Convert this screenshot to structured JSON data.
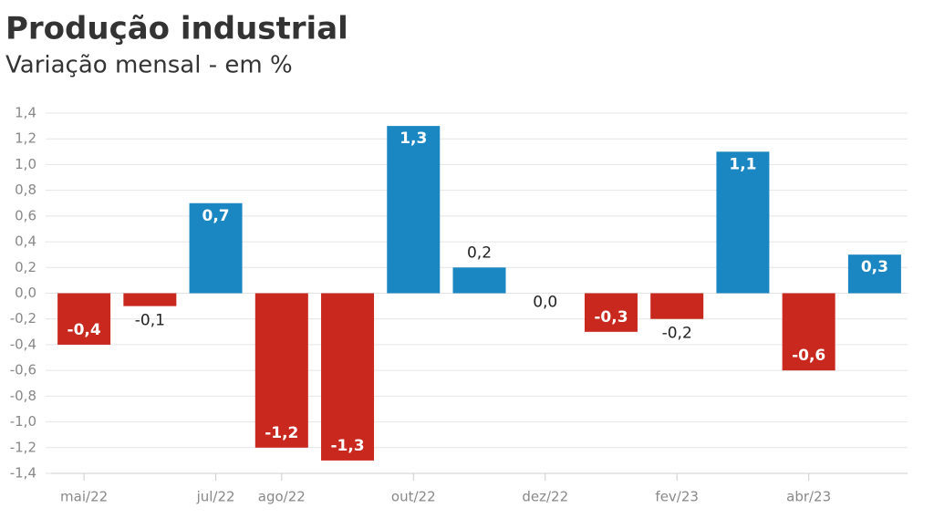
{
  "chart_data": {
    "type": "bar",
    "title": "Produção industrial",
    "subtitle": "Variação mensal - em %",
    "categories": [
      "mai/22",
      null,
      "jul/22",
      "ago/22",
      null,
      "out/22",
      null,
      "dez/22",
      null,
      "fev/23",
      null,
      "abr/23",
      null
    ],
    "values": [
      -0.4,
      -0.1,
      0.7,
      -1.2,
      -1.3,
      1.3,
      0.2,
      0.0,
      -0.3,
      -0.2,
      1.1,
      -0.6,
      0.3
    ],
    "value_labels": [
      "-0,4",
      "-0,1",
      "0,7",
      "-1,2",
      "-1,3",
      "1,3",
      "0,2",
      "0,0",
      "-0,3",
      "-0,2",
      "1,1",
      "-0,6",
      "0,3"
    ],
    "positive_color": "#1b87c2",
    "negative_color": "#c9281f",
    "ylim": [
      -1.4,
      1.4
    ],
    "yticks": [
      {
        "value": -1.4,
        "label": "-1,4"
      },
      {
        "value": -1.2,
        "label": "-1,2"
      },
      {
        "value": -1.0,
        "label": "-1,0"
      },
      {
        "value": -0.8,
        "label": "-0,8"
      },
      {
        "value": -0.6,
        "label": "-0,6"
      },
      {
        "value": -0.4,
        "label": "-0,4"
      },
      {
        "value": -0.2,
        "label": "-0,2"
      },
      {
        "value": 0.0,
        "label": "0,0"
      },
      {
        "value": 0.2,
        "label": "0,2"
      },
      {
        "value": 0.4,
        "label": "0,4"
      },
      {
        "value": 0.6,
        "label": "0,6"
      },
      {
        "value": 0.8,
        "label": "0,8"
      },
      {
        "value": 1.0,
        "label": "1,0"
      },
      {
        "value": 1.2,
        "label": "1,2"
      },
      {
        "value": 1.4,
        "label": "1,4"
      }
    ],
    "grid": true
  }
}
